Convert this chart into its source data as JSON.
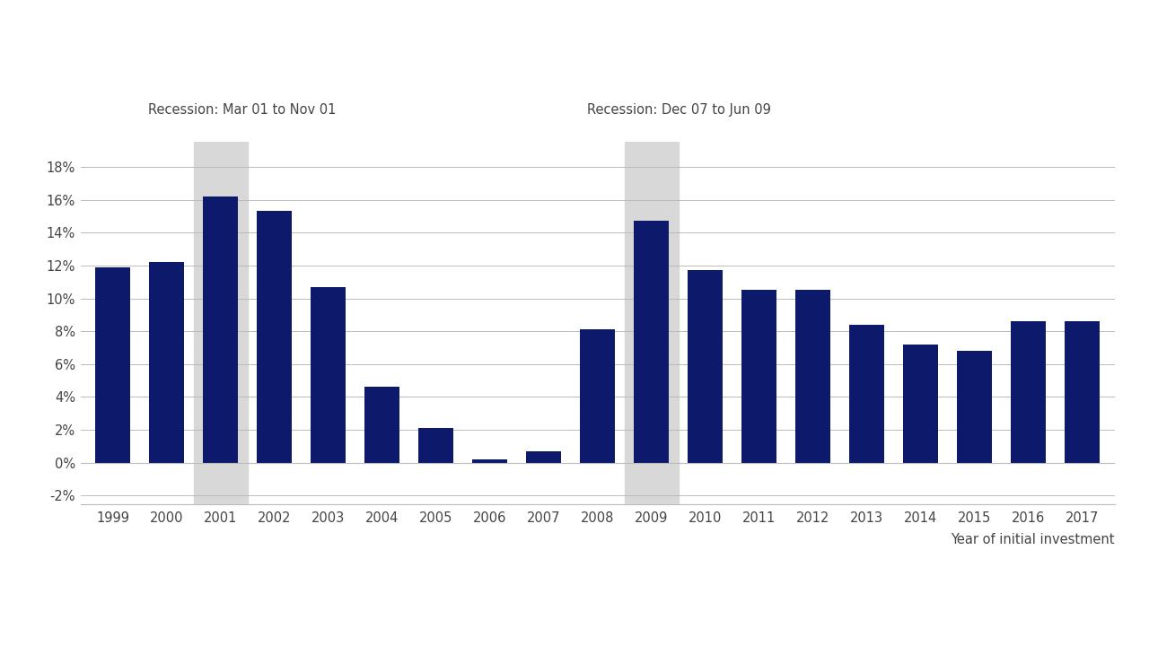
{
  "years": [
    1999,
    2000,
    2001,
    2002,
    2003,
    2004,
    2005,
    2006,
    2007,
    2008,
    2009,
    2010,
    2011,
    2012,
    2013,
    2014,
    2015,
    2016,
    2017
  ],
  "values": [
    11.9,
    12.2,
    16.2,
    15.3,
    10.7,
    4.6,
    2.1,
    0.2,
    0.7,
    8.1,
    14.7,
    11.7,
    10.5,
    10.5,
    8.4,
    7.2,
    6.8,
    8.6,
    8.6
  ],
  "bar_color": "#0d1a6b",
  "recession_1_year": 2001,
  "recession_1_label": "Recession: Mar 01 to Nov 01",
  "recession_2_year": 2009,
  "recession_2_label": "Recession: Dec 07 to Jun 09",
  "recession_shade_color": "#d8d8d8",
  "ytick_values": [
    -2,
    0,
    2,
    4,
    6,
    8,
    10,
    12,
    14,
    16,
    18
  ],
  "ylim": [
    -2.5,
    19.5
  ],
  "xlabel": "Year of initial investment",
  "background_color": "#ffffff",
  "grid_color": "#bbbbbb",
  "annotation_fontsize": 10.5,
  "tick_fontsize": 10.5,
  "xlabel_fontsize": 10.5
}
